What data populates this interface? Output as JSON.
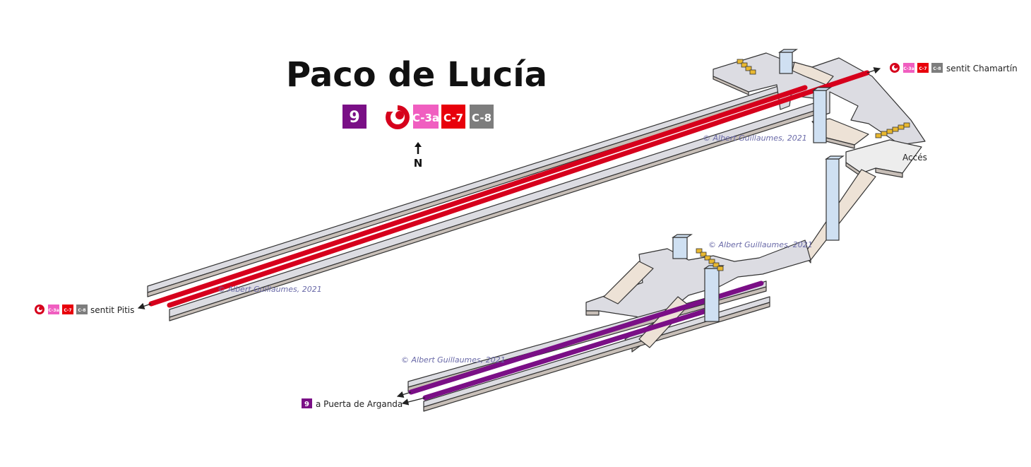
{
  "title": "Paco de Lucía",
  "lines": {
    "metro": {
      "label": "9",
      "color": "#7a0f86"
    },
    "cercanias_logo": {
      "icon": "cercanias-logo-icon",
      "color": "#d6001c"
    },
    "c3a": {
      "label": "C-3a",
      "color": "#f05ec0"
    },
    "c7": {
      "label": "C-7",
      "color": "#e8000b"
    },
    "c8": {
      "label": "C-8",
      "color": "#7d7d7d"
    }
  },
  "north": {
    "label": "N",
    "icon": "north-arrow-icon"
  },
  "directions": {
    "chamartin": "sentit Chamartín",
    "pitis": "sentit Pitis",
    "arganda": "a Puerta de Arganda"
  },
  "access_label": "Accés",
  "copyright": "© Albert Guillaumes, 2021",
  "colors": {
    "platform_top": "#dcdce2",
    "platform_side": "#c8bfb8",
    "corridor": "#ede2d6",
    "lift": "#cfe0f2",
    "escalator": "#e8b830",
    "outline": "#333333"
  }
}
